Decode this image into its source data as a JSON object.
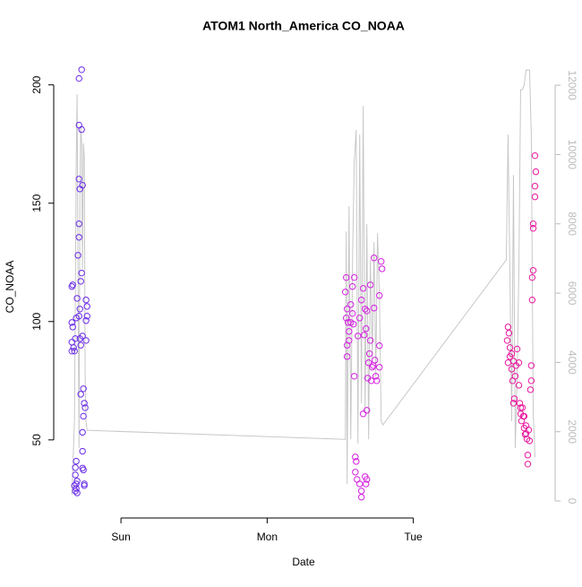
{
  "chart_data": {
    "type": "scatter",
    "title": "ATOM1 North_America CO_NOAA",
    "xlabel": "Date",
    "ylabel": "CO_NOAA",
    "xlim": [
      0.54,
      3.97
    ],
    "xticks": [
      {
        "value": 1,
        "label": "Sun"
      },
      {
        "value": 2,
        "label": "Mon"
      },
      {
        "value": 3,
        "label": "Tue"
      }
    ],
    "ylim": [
      17,
      212
    ],
    "yticks": [
      50,
      100,
      150,
      200
    ],
    "y2lim": [
      -490,
      12830
    ],
    "y2ticks": [
      0,
      2000,
      4000,
      6000,
      8000,
      10000,
      12000
    ],
    "series": [
      {
        "color": "#6a2be8",
        "x": [
          0.664,
          0.67,
          0.664,
          0.67,
          0.664,
          0.676,
          0.664,
          0.682,
          0.688,
          0.694,
          0.7,
          0.694,
          0.688,
          0.688,
          0.694,
          0.7,
          0.694,
          0.706,
          0.713,
          0.713,
          0.731,
          0.713,
          0.731,
          0.713,
          0.719,
          0.737,
          0.713,
          0.731,
          0.725,
          0.719,
          0.713,
          0.725,
          0.719,
          0.737,
          0.725,
          0.743,
          0.749,
          0.755,
          0.743,
          0.737,
          0.737,
          0.737,
          0.743,
          0.749,
          0.749,
          0.761,
          0.768,
          0.768,
          0.761,
          0.761,
          0.7,
          0.682,
          0.688
        ],
        "values": [
          114.8,
          115.5,
          99.6,
          97.7,
          91.3,
          89,
          87.5,
          87.5,
          92.8,
          101.5,
          109.8,
          41,
          38.3,
          35.2,
          31.4,
          27.6,
          29.5,
          128,
          141.3,
          202.7,
          206.4,
          183,
          181.1,
          160.2,
          156,
          157.6,
          135.6,
          120.5,
          117,
          105.3,
          102.3,
          90,
          92.8,
          93.9,
          69.3,
          71.6,
          65.5,
          63.6,
          60,
          53.2,
          45.2,
          38.1,
          37.3,
          31.4,
          30.7,
          109.1,
          106.4,
          102.3,
          100.4,
          92,
          32.6,
          30.7,
          28.4
        ]
      },
      {
        "color": "#d41fe0",
        "x": [
          2.541,
          2.535,
          2.547,
          2.541,
          2.554,
          2.547,
          2.56,
          2.547,
          2.56,
          2.572,
          2.584,
          2.596,
          2.584,
          2.59,
          2.596,
          2.603,
          2.609,
          2.603,
          2.615,
          2.633,
          2.645,
          2.645,
          2.621,
          2.633,
          2.645,
          2.657,
          2.67,
          2.664,
          2.682,
          2.676,
          2.694,
          2.688,
          2.67,
          2.682,
          2.676,
          2.706,
          2.7,
          2.719,
          2.713,
          2.731,
          2.725,
          2.743,
          2.737,
          2.749,
          2.768,
          2.768,
          2.78,
          2.786,
          2.768,
          2.682,
          2.657,
          2.572,
          2.706,
          2.731
        ],
        "values": [
          118.6,
          112.5,
          105.3,
          101.5,
          99.6,
          90,
          95.8,
          85.2,
          92,
          107.2,
          114.8,
          118.6,
          103.4,
          98.9,
          76.9,
          42.8,
          40.9,
          36.4,
          33.3,
          31.4,
          28.4,
          25.8,
          93.9,
          101.5,
          109.1,
          114,
          105.3,
          94.3,
          104.5,
          97,
          82.6,
          76.1,
          34.5,
          33.3,
          31.4,
          92,
          86.4,
          80.7,
          75,
          126.9,
          81.4,
          76.9,
          83.7,
          75,
          80.7,
          111,
          125.4,
          122.3,
          89.8,
          62.5,
          61,
          99.6,
          115.5,
          105.7
        ]
      },
      {
        "color": "#e8189e",
        "x": [
          3.648,
          3.654,
          3.642,
          3.661,
          3.648,
          3.661,
          3.673,
          3.685,
          3.673,
          3.679,
          3.691,
          3.685,
          3.697,
          3.703,
          3.71,
          3.722,
          3.722,
          3.728,
          3.734,
          3.74,
          3.746,
          3.752,
          3.758,
          3.765,
          3.771,
          3.777,
          3.783,
          3.783,
          3.789,
          3.795,
          3.801,
          3.807,
          3.807,
          3.813,
          3.813,
          3.82,
          3.82,
          3.82,
          3.832,
          3.832,
          3.838,
          3.832,
          3.734,
          3.758,
          3.771
        ],
        "values": [
          97.7,
          95.1,
          92,
          89,
          82.6,
          85.2,
          86.4,
          83.3,
          79.9,
          75,
          67.4,
          65.5,
          76.9,
          81.4,
          88.4,
          82.6,
          73.1,
          65.5,
          61,
          58,
          63.6,
          60,
          55,
          52.3,
          56,
          50.4,
          43.6,
          39.8,
          54.2,
          49.6,
          71.2,
          75,
          81.4,
          109.1,
          118.6,
          121.6,
          139.4,
          141.3,
          152.7,
          157.2,
          163.3,
          170.1,
          63.6,
          60,
          52.7
        ]
      },
      {
        "type": "line",
        "axis": "y2",
        "color": "#c8c8c8",
        "x": [
          0.664,
          0.682,
          0.688,
          0.694,
          0.7,
          0.706,
          0.713,
          0.719,
          0.725,
          0.731,
          0.737,
          0.743,
          0.749,
          0.755,
          0.761,
          0.768,
          0.774,
          2.535,
          2.541,
          2.547,
          2.56,
          2.572,
          2.584,
          2.596,
          2.609,
          2.621,
          2.633,
          2.645,
          2.657,
          2.67,
          2.682,
          2.694,
          2.706,
          2.719,
          2.731,
          2.743,
          2.755,
          2.768,
          2.78,
          2.792,
          3.636,
          3.648,
          3.661,
          3.673,
          3.685,
          3.697,
          3.71,
          3.722,
          3.734,
          3.746,
          3.758,
          3.771,
          3.783,
          3.795,
          3.807,
          3.82,
          3.832
        ],
        "values": [
          180,
          2300,
          5920,
          9800,
          11740,
          6700,
          1530,
          8770,
          10840,
          10320,
          6700,
          10320,
          9930,
          3590,
          2300,
          2040,
          2040,
          1780,
          7780,
          490,
          8510,
          1780,
          6960,
          9800,
          10710,
          1660,
          10580,
          2820,
          11400,
          2560,
          7990,
          1780,
          6960,
          4110,
          7470,
          3590,
          7730,
          5920,
          2300,
          2200,
          6960,
          10580,
          6440,
          2300,
          9410,
          1530,
          3590,
          6700,
          11870,
          11870,
          12000,
          12440,
          12440,
          12440,
          10580,
          2560,
          1270
        ]
      }
    ]
  }
}
